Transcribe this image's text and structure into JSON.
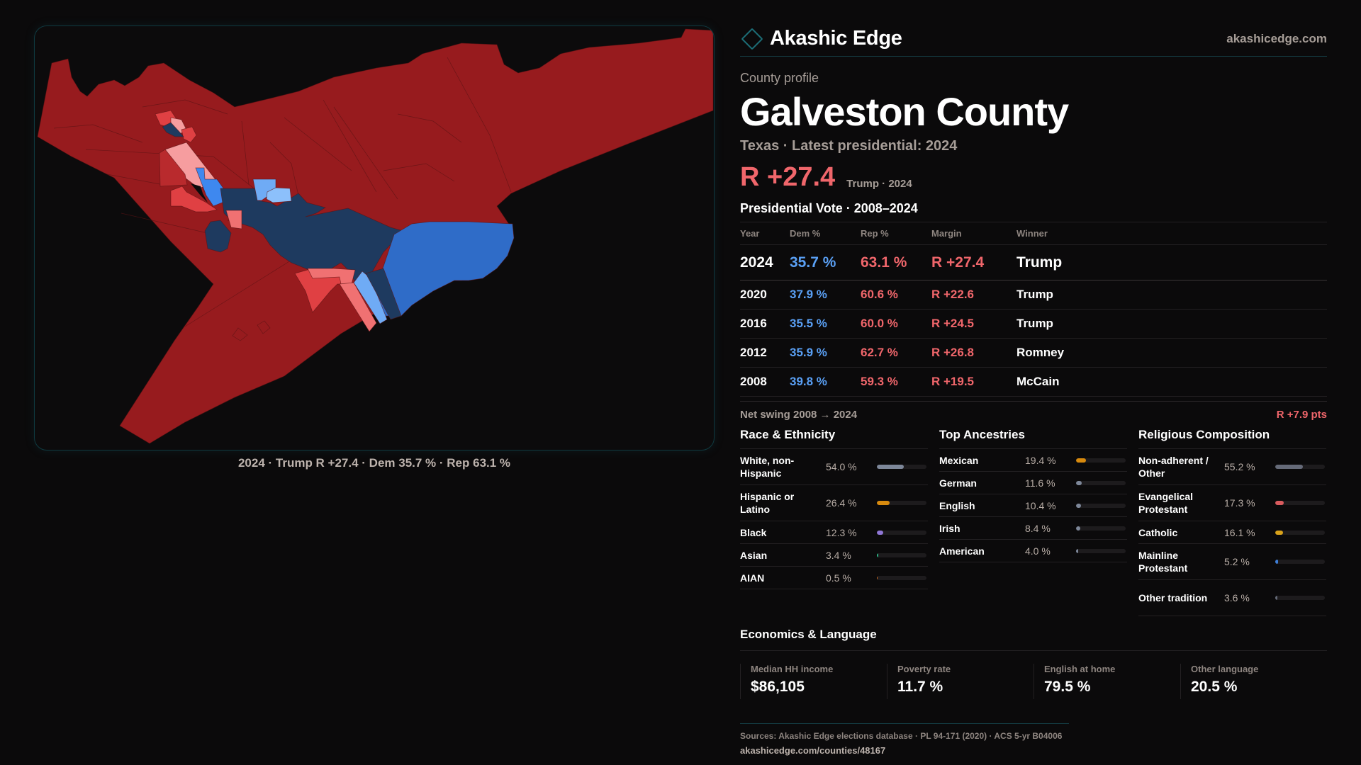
{
  "brand": {
    "name": "Akashic Edge",
    "url": "akashicedge.com",
    "accent": "#1c6f78"
  },
  "profile": {
    "eyebrow": "County profile",
    "title": "Galveston County",
    "subtitle": "Texas · Latest presidential: 2024",
    "headline_margin": "R +27.4",
    "headline_sub": "Trump · 2024"
  },
  "map": {
    "caption": "2024 · Trump R +27.4 · Dem 35.7 % · Rep 63.1 %",
    "colors": {
      "safe_r": "#971b1e",
      "likely_r": "#b92a2d",
      "lean_r": "#e04043",
      "tilt_r": "#f07172",
      "light_r": "#f69d9f",
      "safe_d": "#1e3a5f",
      "likely_d": "#2f6cc8",
      "lean_d": "#3e88ef",
      "tilt_d": "#6fabf5",
      "light_d": "#8cc0fb",
      "water": "#0c0b0c"
    }
  },
  "vote": {
    "title": "Presidential Vote · 2008–2024",
    "columns": [
      "Year",
      "Dem %",
      "Rep %",
      "Margin",
      "Winner"
    ],
    "rows": [
      {
        "year": "2024",
        "dem": "35.7 %",
        "rep": "63.1 %",
        "margin": "R +27.4",
        "winner": "Trump"
      },
      {
        "year": "2020",
        "dem": "37.9 %",
        "rep": "60.6 %",
        "margin": "R +22.6",
        "winner": "Trump"
      },
      {
        "year": "2016",
        "dem": "35.5 %",
        "rep": "60.0 %",
        "margin": "R +24.5",
        "winner": "Trump"
      },
      {
        "year": "2012",
        "dem": "35.9 %",
        "rep": "62.7 %",
        "margin": "R +26.8",
        "winner": "Romney"
      },
      {
        "year": "2008",
        "dem": "39.8 %",
        "rep": "59.3 %",
        "margin": "R +19.5",
        "winner": "McCain"
      }
    ],
    "swing_label": "Net swing 2008 → 2024",
    "swing_value": "R +7.9 pts",
    "dem_color": "#5aa0f5",
    "rep_color": "#f0666b"
  },
  "race": {
    "title": "Race & Ethnicity",
    "items": [
      {
        "label": "White, non-Hispanic",
        "value": "54.0 %",
        "pct": 54.0,
        "color": "#7d8799"
      },
      {
        "label": "Hispanic or Latino",
        "value": "26.4 %",
        "pct": 26.4,
        "color": "#d88a0e"
      },
      {
        "label": "Black",
        "value": "12.3 %",
        "pct": 12.3,
        "color": "#9077d6"
      },
      {
        "label": "Asian",
        "value": "3.4 %",
        "pct": 3.4,
        "color": "#2bb685"
      },
      {
        "label": "AIAN",
        "value": "0.5 %",
        "pct": 0.5,
        "color": "#d36b1e"
      }
    ]
  },
  "ancestry": {
    "title": "Top Ancestries",
    "items": [
      {
        "label": "Mexican",
        "value": "19.4 %",
        "pct": 19.4,
        "color": "#d88a0e"
      },
      {
        "label": "German",
        "value": "11.6 %",
        "pct": 11.6,
        "color": "#7d8799"
      },
      {
        "label": "English",
        "value": "10.4 %",
        "pct": 10.4,
        "color": "#7d8799"
      },
      {
        "label": "Irish",
        "value": "8.4 %",
        "pct": 8.4,
        "color": "#7d8799"
      },
      {
        "label": "American",
        "value": "4.0 %",
        "pct": 4.0,
        "color": "#7d8799"
      }
    ]
  },
  "religion": {
    "title": "Religious Composition",
    "items": [
      {
        "label": "Non-adherent / Other",
        "value": "55.2 %",
        "pct": 55.2,
        "color": "#656a78"
      },
      {
        "label": "Evangelical Protestant",
        "value": "17.3 %",
        "pct": 17.3,
        "color": "#d95b5e"
      },
      {
        "label": "Catholic",
        "value": "16.1 %",
        "pct": 16.1,
        "color": "#d9a21a"
      },
      {
        "label": "Mainline Protestant",
        "value": "5.2 %",
        "pct": 5.2,
        "color": "#3e7fd9"
      },
      {
        "label": "Other tradition",
        "value": "3.6 %",
        "pct": 3.6,
        "color": "#656a78"
      }
    ]
  },
  "economics": {
    "title": "Economics & Language",
    "items": [
      {
        "label": "Median HH income",
        "value": "$86,105"
      },
      {
        "label": "Poverty rate",
        "value": "11.7 %"
      },
      {
        "label": "English at home",
        "value": "79.5 %"
      },
      {
        "label": "Other language",
        "value": "20.5 %"
      }
    ]
  },
  "sources": {
    "text": "Sources: Akashic Edge elections database · PL 94-171 (2020) · ACS 5-yr B04006",
    "url": "akashicedge.com/counties/48167"
  }
}
